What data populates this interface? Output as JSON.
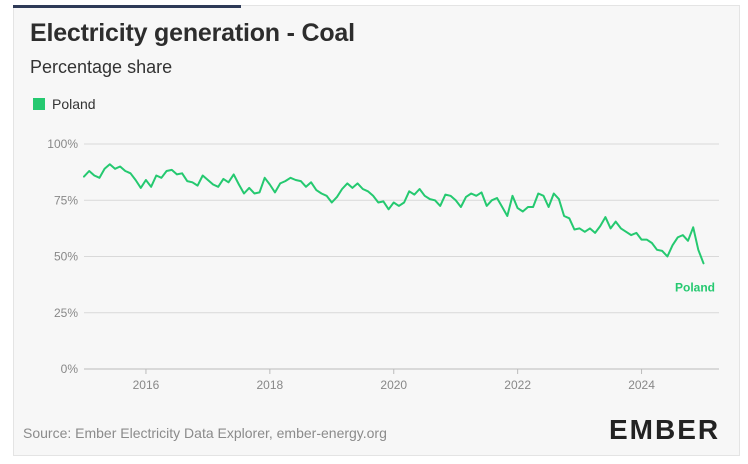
{
  "header": {
    "title": "Electricity generation - Coal",
    "subtitle": "Percentage share"
  },
  "footer": {
    "source": "Source: Ember Electricity Data Explorer, ember-energy.org",
    "logo": "EMBER"
  },
  "colors": {
    "series": "#25c970",
    "grid": "#d9d9d9",
    "axis": "#bbbbbb"
  },
  "chart_data": {
    "type": "line",
    "title": "Electricity generation - Coal",
    "subtitle": "Percentage share",
    "xlabel": "",
    "ylabel": "",
    "xlim": [
      2015.0,
      2025.25
    ],
    "ylim": [
      0,
      100
    ],
    "x_ticks": [
      2016,
      2018,
      2020,
      2022,
      2024
    ],
    "x_tick_labels": [
      "2016",
      "2018",
      "2020",
      "2022",
      "2024"
    ],
    "y_ticks": [
      0,
      25,
      50,
      75,
      100
    ],
    "y_tick_labels": [
      "0%",
      "25%",
      "50%",
      "75%",
      "100%"
    ],
    "grid": true,
    "legend": {
      "position": "top-left",
      "entries": [
        "Poland"
      ]
    },
    "series": [
      {
        "name": "Poland",
        "end_label": "Poland",
        "x_start": 2015.0,
        "x_step": 0.08333,
        "values": [
          85.5,
          88,
          86,
          85,
          89,
          91,
          89,
          90,
          88,
          87,
          84,
          80.5,
          84,
          81,
          86,
          85,
          88,
          88.5,
          86.5,
          87,
          83.5,
          83,
          81.5,
          86,
          84,
          82,
          81,
          84.5,
          83,
          86.5,
          82,
          78,
          80.5,
          78,
          78.5,
          85,
          82,
          78.5,
          82.5,
          83.5,
          85,
          84,
          83.5,
          81,
          83,
          79.5,
          78,
          77,
          74,
          76.5,
          80,
          82.5,
          80.5,
          82.5,
          80,
          79,
          77,
          74,
          74.5,
          71,
          74,
          72.5,
          74,
          79,
          77.5,
          80,
          77,
          75.5,
          75,
          72.5,
          77.5,
          77,
          75,
          72,
          76.5,
          78,
          77,
          78.5,
          72.5,
          75,
          76,
          72,
          68,
          77,
          71.5,
          70,
          72,
          72,
          78,
          77,
          72,
          78,
          75.5,
          68,
          67,
          62,
          62.5,
          61,
          62.5,
          60.5,
          63.5,
          67.5,
          62.5,
          65.5,
          62.5,
          61,
          59.5,
          60.5,
          57.5,
          57.5,
          56,
          53,
          52.5,
          50,
          55,
          58.5,
          59.5,
          57,
          63,
          53,
          47
        ]
      }
    ]
  }
}
